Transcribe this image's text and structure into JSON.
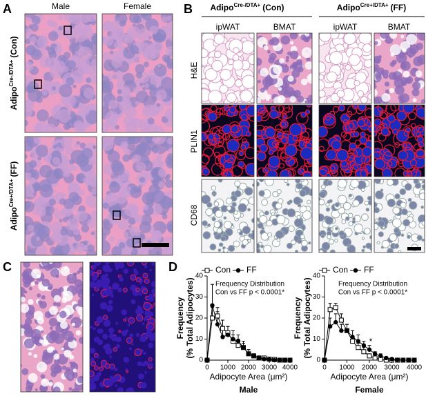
{
  "panel_a": {
    "letter": "A",
    "columns": [
      "Male",
      "Female"
    ],
    "rows": [
      {
        "prefix": "Adipo",
        "sup": "Cre-/DTA+",
        "suffix": "(Con)"
      },
      {
        "prefix": "Adipo",
        "sup": "Cre+/DTA+",
        "suffix": "(FF)"
      }
    ]
  },
  "panel_b": {
    "letter": "B",
    "groups": [
      {
        "prefix": "Adipo",
        "sup": "Cre-/DTA+",
        "suffix": "(Con)"
      },
      {
        "prefix": "Adipo",
        "sup": "Cre+/DTA+",
        "suffix": "(FF)"
      }
    ],
    "columns": [
      "ipWAT",
      "BMAT",
      "ipWAT",
      "BMAT"
    ],
    "rows": [
      "H&E",
      "PLIN1",
      "CD68"
    ]
  },
  "panel_c": {
    "letter": "C"
  },
  "panel_d": {
    "letter": "D"
  },
  "chart_data": [
    {
      "type": "line",
      "subtitle": "Male",
      "ylabel": [
        "Frequency",
        "(% Total Adipocytes)"
      ],
      "xlabel": "Adipocyte Area (μm²)",
      "annotations": [
        "Frequency Distribution",
        "Con vs FF p < 0.0001*"
      ],
      "x": [
        0,
        250,
        500,
        750,
        1000,
        1250,
        1500,
        1750,
        2000,
        2250,
        2500,
        2750,
        3000,
        3250,
        3500,
        3750,
        4000
      ],
      "series": [
        {
          "name": "Con",
          "color": "#000000",
          "marker": "open-square",
          "values": [
            0,
            20,
            21,
            15,
            13,
            9,
            7,
            6,
            3,
            2,
            1,
            1,
            0.5,
            0.3,
            0,
            0,
            0
          ],
          "errors": [
            0,
            5,
            4,
            4,
            3,
            3,
            3,
            2,
            2,
            1,
            1,
            0.5,
            0.5,
            0.3,
            0,
            0,
            0
          ]
        },
        {
          "name": "FF",
          "color": "#000000",
          "marker": "filled-circle",
          "values": [
            0,
            26,
            17,
            11,
            12,
            10,
            9,
            6,
            3,
            2,
            1,
            0.5,
            0.3,
            0,
            0,
            0,
            0
          ],
          "errors": [
            0,
            10,
            6,
            5,
            4,
            4,
            3,
            3,
            2,
            1,
            1,
            0.5,
            0.3,
            0,
            0,
            0,
            0
          ]
        }
      ],
      "xlim": [
        0,
        4000
      ],
      "xticks": [
        0,
        1000,
        2000,
        3000,
        4000
      ],
      "ylim": [
        0,
        40
      ],
      "yticks": [
        0,
        10,
        20,
        30,
        40
      ]
    },
    {
      "type": "line",
      "subtitle": "Female",
      "ylabel": [
        "Frequency",
        "(% Total Adipocytes)"
      ],
      "xlabel": "Adipocyte Area (μm²)",
      "annotations": [
        "Frequency Distribution",
        "Con vs FF p < 0.0001*"
      ],
      "significance": "*",
      "x": [
        0,
        250,
        500,
        750,
        1000,
        1250,
        1500,
        1750,
        2000,
        2250,
        2500,
        2750,
        3000,
        3250,
        3500,
        3750,
        4000
      ],
      "series": [
        {
          "name": "Con",
          "color": "#000000",
          "marker": "open-square",
          "values": [
            0,
            24,
            25,
            19,
            14,
            9,
            6,
            4,
            2,
            1,
            0.5,
            0,
            0,
            0,
            0,
            0,
            0
          ],
          "errors": [
            0,
            3,
            2,
            3,
            3,
            2,
            2,
            2,
            1,
            1,
            0.5,
            0,
            0,
            0,
            0,
            0,
            0
          ]
        },
        {
          "name": "FF",
          "color": "#000000",
          "marker": "filled-circle",
          "values": [
            0,
            16,
            18,
            14,
            14,
            11,
            9,
            7,
            5,
            3,
            2,
            1,
            0.5,
            0.2,
            0,
            0,
            0
          ],
          "errors": [
            0,
            4,
            4,
            3,
            3,
            3,
            3,
            2,
            2,
            1,
            1,
            0.5,
            0.3,
            0.2,
            0,
            0,
            0
          ]
        }
      ],
      "xlim": [
        0,
        4000
      ],
      "xticks": [
        0,
        1000,
        2000,
        3000,
        4000
      ],
      "ylim": [
        0,
        40
      ],
      "yticks": [
        0,
        10,
        20,
        30,
        40
      ]
    }
  ]
}
